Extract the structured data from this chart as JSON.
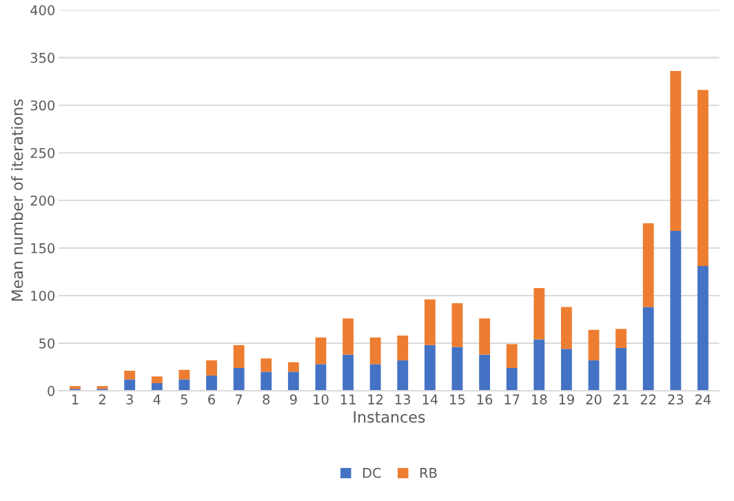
{
  "chart_data": {
    "type": "bar",
    "stacked": true,
    "xlabel": "Instances",
    "ylabel": "Mean number of iterations",
    "categories": [
      "1",
      "2",
      "3",
      "4",
      "5",
      "6",
      "7",
      "8",
      "9",
      "10",
      "11",
      "12",
      "13",
      "14",
      "15",
      "16",
      "17",
      "18",
      "19",
      "20",
      "21",
      "22",
      "23",
      "24"
    ],
    "series": [
      {
        "name": "DC",
        "color": "#4472c4",
        "values": [
          2,
          2,
          12,
          8,
          12,
          16,
          24,
          20,
          20,
          28,
          38,
          28,
          32,
          48,
          46,
          38,
          24,
          54,
          44,
          32,
          45,
          88,
          168,
          131
        ]
      },
      {
        "name": "RB",
        "color": "#ed7d31",
        "values": [
          3,
          3,
          9,
          7,
          10,
          16,
          24,
          14,
          10,
          28,
          38,
          28,
          26,
          48,
          46,
          38,
          25,
          54,
          44,
          32,
          20,
          88,
          168,
          185
        ]
      }
    ],
    "ylim": [
      0,
      400
    ],
    "yticks": [
      0,
      50,
      100,
      150,
      200,
      250,
      300,
      350,
      400
    ],
    "grid": "y",
    "legend": "bottom"
  }
}
